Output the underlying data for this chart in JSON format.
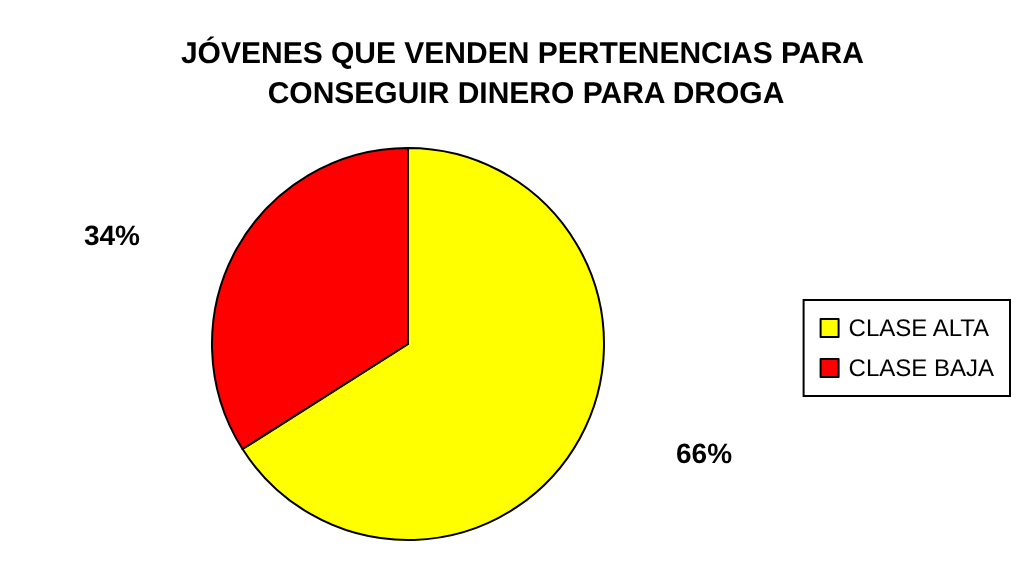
{
  "chart_data": {
    "type": "pie",
    "title": "JÓVENES QUE VENDEN PERTENENCIAS PARA CONSEGUIR DINERO PARA DROGA",
    "categories": [
      "CLASE ALTA",
      "CLASE BAJA"
    ],
    "values": [
      66,
      34
    ],
    "colors": [
      "#ffff00",
      "#ff0000"
    ],
    "value_labels": [
      "66%",
      "34%"
    ],
    "legend": "right"
  }
}
